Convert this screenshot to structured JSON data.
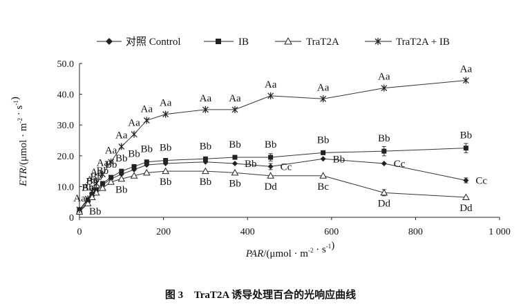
{
  "caption": {
    "label": "图 3",
    "text": "TraT2A 诱导处理百合的光响应曲线"
  },
  "chart_data": {
    "type": "line",
    "xlabel": "PAR/(μmol · m-2 · s-1)",
    "ylabel": "ETR/(μmol · m-2 · s-1)",
    "xlim": [
      0,
      1000
    ],
    "ylim": [
      0,
      50
    ],
    "x_ticks": [
      "0",
      "200",
      "400",
      "600",
      "800",
      "1 000"
    ],
    "y_ticks": [
      "0",
      "10.0",
      "20.0",
      "30.0",
      "40.0",
      "50.0"
    ],
    "legend_position": "top",
    "grid": false,
    "x": [
      0,
      20,
      30,
      40,
      55,
      75,
      100,
      130,
      160,
      205,
      300,
      370,
      455,
      580,
      725,
      920
    ],
    "series": [
      {
        "name": "对照 Control",
        "marker": "diamond",
        "values": [
          2.0,
          5.0,
          7.0,
          8.5,
          10.5,
          12.5,
          14.0,
          15.5,
          17.0,
          17.5,
          18.0,
          17.5,
          16.5,
          19.0,
          17.5,
          12.0
        ],
        "labels": [
          "Bb",
          "",
          "",
          "",
          "",
          "",
          "",
          "",
          "",
          "",
          "",
          "Bb",
          "Cc",
          "Bb",
          "Cc",
          "Cc"
        ],
        "error": [
          0,
          0,
          0,
          0,
          0,
          0,
          0,
          0,
          0,
          0,
          0,
          0,
          1.0,
          0,
          0,
          0.8
        ]
      },
      {
        "name": "IB",
        "marker": "square",
        "values": [
          2.5,
          5.5,
          7.5,
          9.0,
          11.0,
          13.0,
          15.0,
          16.5,
          18.0,
          18.5,
          19.0,
          19.5,
          19.5,
          21.0,
          21.5,
          22.5
        ],
        "labels": [
          "",
          "Bb",
          "Bb",
          "Bb",
          "Bb",
          "Bb",
          "Bb",
          "Bb",
          "Bb",
          "Bb",
          "Bb",
          "Bb",
          "Bb",
          "Bb",
          "Bb",
          "Bb"
        ],
        "error": [
          0,
          0,
          0,
          0,
          0,
          0,
          0,
          0,
          0,
          0,
          0,
          0,
          1.2,
          0,
          1.5,
          1.5
        ]
      },
      {
        "name": "TraT2A",
        "marker": "triangle",
        "values": [
          1.8,
          4.5,
          6.5,
          8.0,
          9.5,
          11.5,
          12.5,
          13.5,
          14.5,
          15.0,
          15.0,
          14.5,
          13.5,
          13.5,
          8.0,
          6.5
        ],
        "labels": [
          "",
          "",
          "",
          "",
          "",
          "",
          "Bb",
          "",
          "",
          "Bb",
          "Bb",
          "Bb",
          "Dd",
          "Bc",
          "Dd",
          "Dd"
        ],
        "error": [
          0,
          0,
          0,
          0,
          0,
          0,
          0,
          0,
          0,
          0,
          0,
          0,
          0,
          0,
          1.0,
          0
        ]
      },
      {
        "name": "TraT2A + IB",
        "marker": "asterisk",
        "values": [
          2.5,
          6.0,
          8.5,
          11.0,
          14.0,
          18.0,
          23.0,
          27.0,
          31.5,
          33.5,
          35.0,
          35.0,
          39.5,
          38.5,
          42.0,
          44.5
        ],
        "labels": [
          "Aa",
          "Aa",
          "Aa",
          "Aa",
          "Aa",
          "Aa",
          "Aa",
          "Aa",
          "Aa",
          "Aa",
          "Aa",
          "Aa",
          "Aa",
          "Aa",
          "Aa",
          "Aa"
        ],
        "error": [
          0,
          0,
          0,
          0,
          0,
          0,
          0,
          0,
          0,
          0,
          0,
          0,
          0,
          0,
          0,
          0
        ]
      }
    ]
  }
}
